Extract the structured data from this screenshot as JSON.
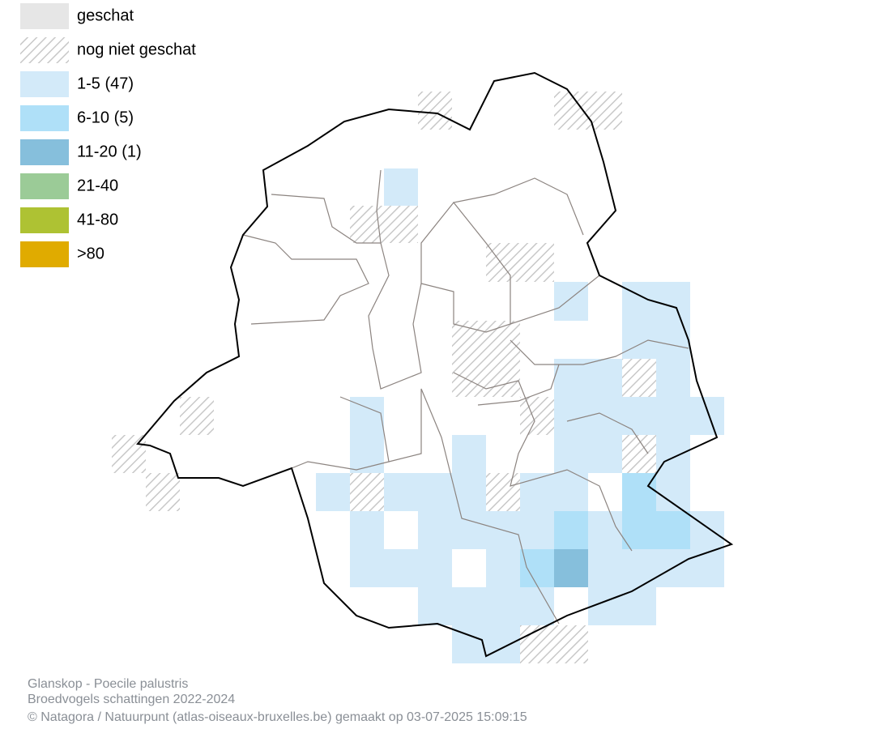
{
  "legend": {
    "items": [
      {
        "label": "geschat",
        "color": "#e6e6e6"
      },
      {
        "label": "nog niet geschat",
        "pattern": "hatch"
      },
      {
        "label": "1-5 (47)",
        "color": "#d3eaf9"
      },
      {
        "label": "6-10 (5)",
        "color": "#afe0f8"
      },
      {
        "label": "11-20 (1)",
        "color": "#86bfdc"
      },
      {
        "label": "21-40",
        "color": "#9bcb97"
      },
      {
        "label": "41-80",
        "color": "#aec233"
      },
      {
        "label": ">80",
        "color": "#e0ab00"
      }
    ]
  },
  "footer": {
    "species": "Glanskop - Poecile palustris",
    "subtitle": "Broedvogels schattingen 2022-2024",
    "credit": "© Natagora / Natuurpunt (atlas-oiseaux-bruxelles.be) gemaakt op 03-07-2025 15:09:15"
  }
}
